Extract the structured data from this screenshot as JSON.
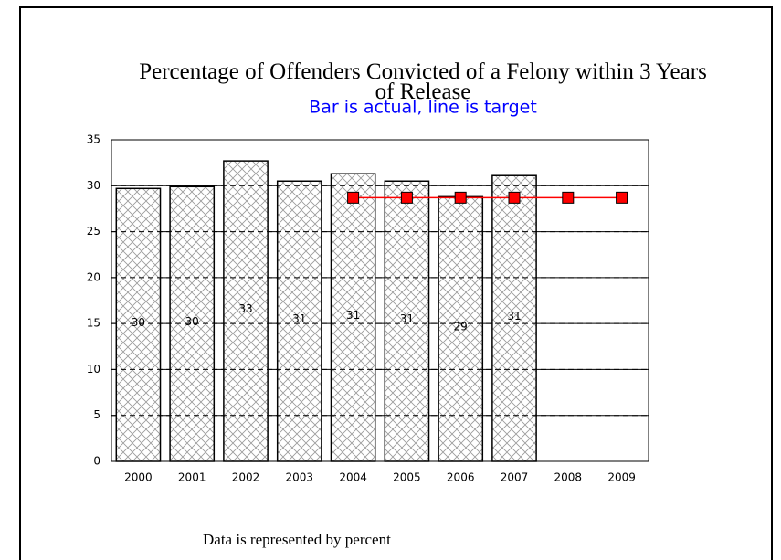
{
  "chart_data": {
    "type": "bar",
    "title": "Percentage of Offenders Convicted of a Felony within 3 Years of Release",
    "subtitle": "Bar is actual, line is target",
    "footnote": "Data is represented by percent",
    "categories": [
      "2000",
      "2001",
      "2002",
      "2003",
      "2004",
      "2005",
      "2006",
      "2007",
      "2008",
      "2009"
    ],
    "series": [
      {
        "type": "bar",
        "color": "#808080",
        "values": [
          29.7,
          29.9,
          32.7,
          30.5,
          31.3,
          30.5,
          28.8,
          31.1,
          null,
          null
        ],
        "value_labels": [
          "30",
          "30",
          "33",
          "31",
          "31",
          "31",
          "29",
          "31",
          null,
          null
        ]
      },
      {
        "type": "line",
        "color": "#ff0000",
        "values": [
          null,
          null,
          null,
          null,
          28.7,
          28.7,
          28.7,
          28.7,
          28.7,
          28.7
        ]
      }
    ],
    "ylim": [
      0,
      35
    ],
    "yticks": [
      0,
      5,
      10,
      15,
      20,
      25,
      30,
      35
    ],
    "grid": true
  }
}
